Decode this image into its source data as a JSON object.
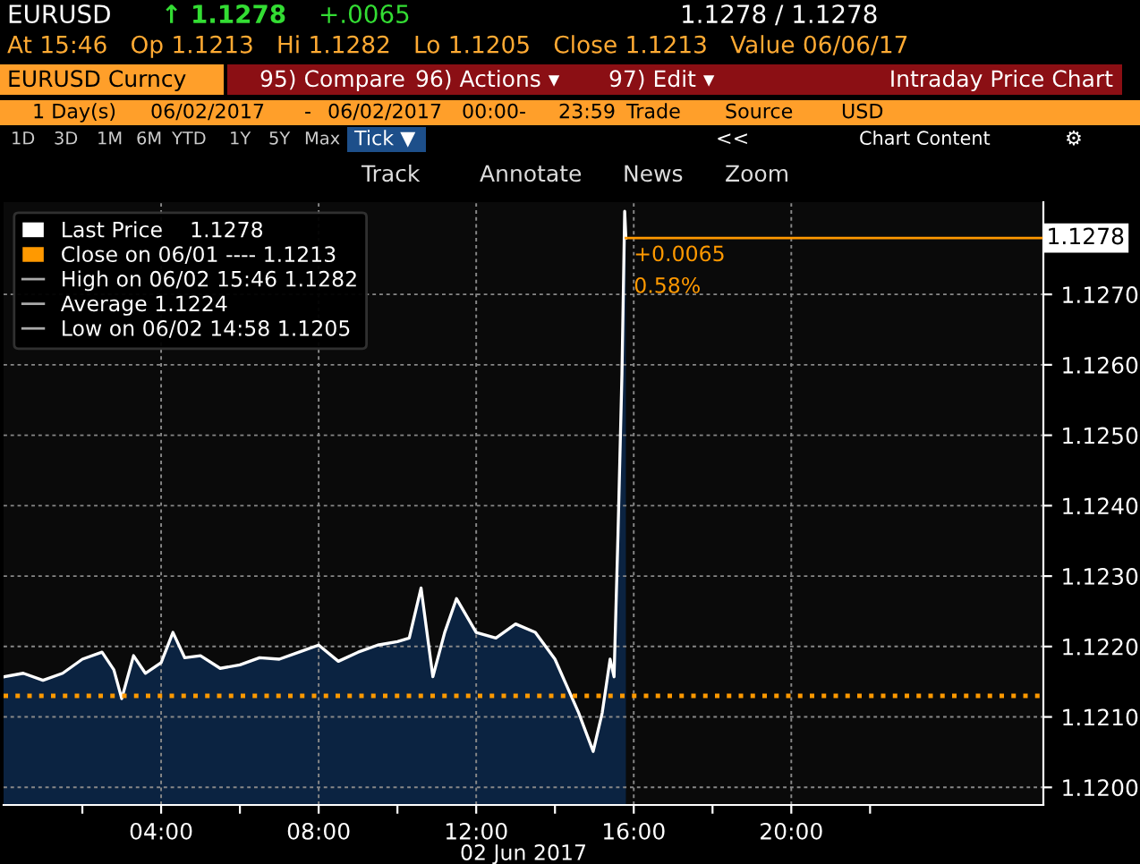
{
  "chart_data": {
    "type": "area",
    "xlabel": "02 Jun 2017",
    "legend": "top left",
    "grid": true,
    "xlim": [
      0,
      26.4
    ],
    "xticks": [
      {
        "value": 2,
        "label": null
      },
      {
        "value": 4,
        "label": "04:00"
      },
      {
        "value": 6,
        "label": null
      },
      {
        "value": 8,
        "label": "08:00"
      },
      {
        "value": 10,
        "label": null
      },
      {
        "value": 12,
        "label": "12:00"
      },
      {
        "value": 14,
        "label": null
      },
      {
        "value": 16,
        "label": "16:00"
      },
      {
        "value": 18,
        "label": null
      },
      {
        "value": 20,
        "label": "20:00"
      },
      {
        "value": 22,
        "label": null
      }
    ],
    "ylim": [
      1.11975,
      1.12831
    ],
    "yticks": [
      {
        "value": 1.12,
        "label": "1.1200"
      },
      {
        "value": 1.121,
        "label": "1.1210"
      },
      {
        "value": 1.122,
        "label": "1.1220"
      },
      {
        "value": 1.123,
        "label": "1.1230"
      },
      {
        "value": 1.124,
        "label": "1.1240"
      },
      {
        "value": 1.125,
        "label": "1.1250"
      },
      {
        "value": 1.126,
        "label": "1.1260"
      },
      {
        "value": 1.127,
        "label": "1.1270"
      }
    ],
    "x": [
      0.0,
      0.5,
      1.0,
      1.5,
      2.0,
      2.5,
      2.8,
      3.0,
      3.3,
      3.6,
      4.0,
      4.3,
      4.6,
      5.0,
      5.5,
      6.0,
      6.5,
      7.0,
      7.5,
      8.0,
      8.5,
      9.0,
      9.5,
      10.0,
      10.3,
      10.6,
      10.9,
      11.2,
      11.5,
      12.0,
      12.5,
      13.0,
      13.5,
      14.0,
      14.3,
      14.6,
      14.97,
      15.2,
      15.4,
      15.5,
      15.6,
      15.7,
      15.77,
      15.8
    ],
    "series": [
      {
        "name": "Last Price",
        "color": "#ffffff",
        "values": [
          1.12157,
          1.12162,
          1.12152,
          1.12162,
          1.12182,
          1.12192,
          1.12167,
          1.12126,
          1.12187,
          1.12162,
          1.12177,
          1.1222,
          1.12184,
          1.12187,
          1.12169,
          1.12174,
          1.12184,
          1.12182,
          1.12192,
          1.12202,
          1.12179,
          1.12192,
          1.12202,
          1.12207,
          1.12212,
          1.12283,
          1.12157,
          1.1222,
          1.12268,
          1.1222,
          1.12212,
          1.12232,
          1.1222,
          1.12182,
          1.12144,
          1.12106,
          1.12051,
          1.12106,
          1.12182,
          1.12157,
          1.12359,
          1.12586,
          1.12818,
          1.1278
        ]
      }
    ],
    "ref_lines": [
      {
        "axis": "y",
        "value": 1.1213,
        "label": "Close on 06/01 ---- 1.1213",
        "color": "#ff9900",
        "line_style": "dotted"
      },
      {
        "axis": "y",
        "value": 1.1278,
        "label": "1.1278",
        "color": "#ff9900",
        "line_style": "solid"
      }
    ],
    "annotations": [
      "+0.0065",
      "0.58%",
      "High on 06/02 15:46 1.1282",
      "Average 1.1224",
      "Low on 06/02 14:58 1.1205",
      "EURUSD",
      "↑ 1.1278",
      "+.0065",
      "1.1278 / 1.1278",
      "At 15:46   Op 1.1213   Hi 1.1282   Lo 1.1205   Close 1.1213   Value 06/06/17",
      "EURUSD Curncy",
      "95) Compare",
      "96) Actions ▾",
      "97) Edit ▾",
      "Intraday Price Chart",
      "1 Day(s)",
      "06/02/2017",
      "-",
      "06/02/2017",
      "00:00",
      "-",
      "23:59",
      "Trade",
      "Source",
      "USD",
      "1D",
      "3D",
      "1M",
      "6M",
      "YTD",
      "1Y",
      "5Y",
      "Max",
      "Tick ▼",
      "<<",
      "Chart Content",
      "⚙",
      "Track",
      "Annotate",
      "News",
      "Zoom"
    ]
  }
}
